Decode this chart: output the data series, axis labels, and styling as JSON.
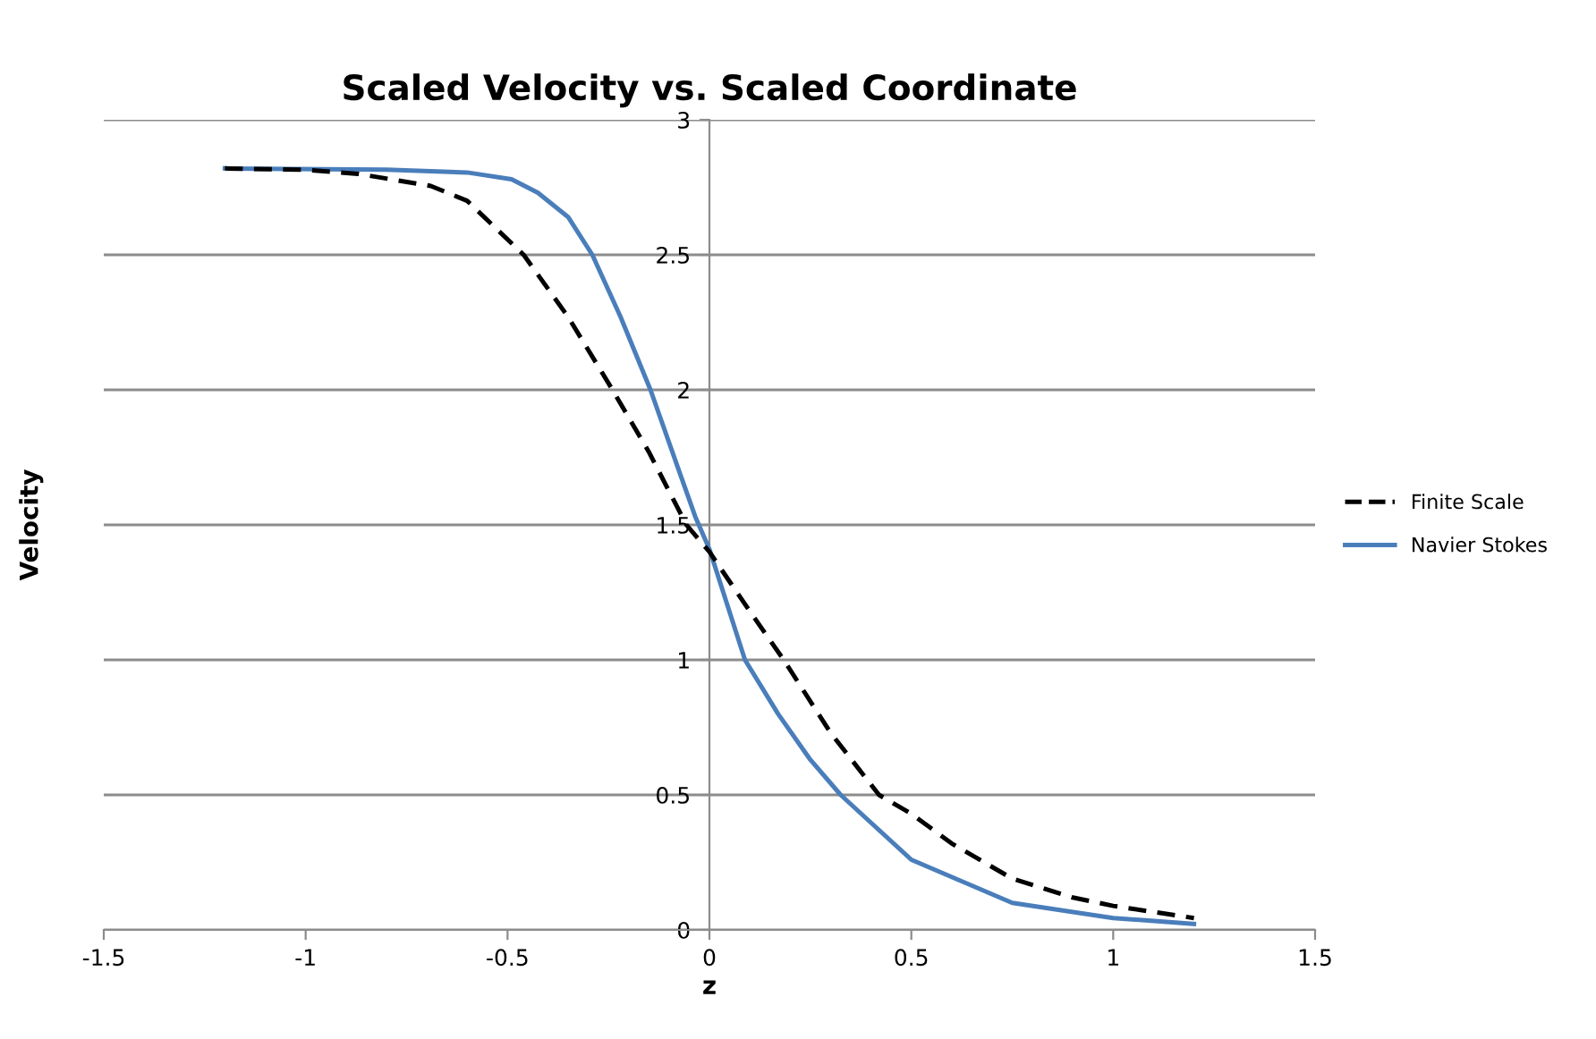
{
  "chart_data": {
    "type": "line",
    "title": "Scaled Velocity vs. Scaled Coordinate",
    "xlabel": "z",
    "ylabel": "Velocity",
    "xlim": [
      -1.5,
      1.5
    ],
    "xticks": [
      -1.5,
      -1,
      -0.5,
      0,
      0.5,
      1,
      1.5
    ],
    "ylim": [
      0,
      3
    ],
    "yticks": [
      0,
      0.5,
      1,
      1.5,
      2,
      2.5,
      3
    ],
    "grid": "y",
    "legend": "right",
    "marker": "none",
    "series": [
      {
        "name": "Finite Scale",
        "color": "#000000",
        "line_style": "dashed",
        "x": [
          -1.2,
          -1,
          -0.87,
          -0.69,
          -0.6,
          -0.46,
          -0.35,
          -0.24,
          -0.15,
          -0.057,
          0,
          0.1,
          0.184,
          0.3,
          0.42,
          0.5,
          0.6,
          0.75,
          0.9,
          1,
          1.2
        ],
        "values": [
          2.82,
          2.815,
          2.8,
          2.755,
          2.7,
          2.5,
          2.27,
          2.0,
          1.77,
          1.5,
          1.4,
          1.18,
          1.0,
          0.73,
          0.5,
          0.43,
          0.32,
          0.19,
          0.12,
          0.089,
          0.044
        ]
      },
      {
        "name": "Navier Stokes",
        "color": "#4a7ebb",
        "line_style": "solid",
        "x": [
          -1.2,
          -0.8,
          -0.6,
          -0.49,
          -0.425,
          -0.35,
          -0.29,
          -0.22,
          -0.146,
          -0.08,
          -0.035,
          0,
          0.088,
          0.17,
          0.25,
          0.325,
          0.5,
          0.75,
          1,
          1.2
        ],
        "values": [
          2.82,
          2.815,
          2.805,
          2.78,
          2.73,
          2.64,
          2.5,
          2.27,
          2.0,
          1.72,
          1.53,
          1.41,
          1.0,
          0.8,
          0.63,
          0.5,
          0.26,
          0.1,
          0.044,
          0.022
        ]
      }
    ]
  }
}
